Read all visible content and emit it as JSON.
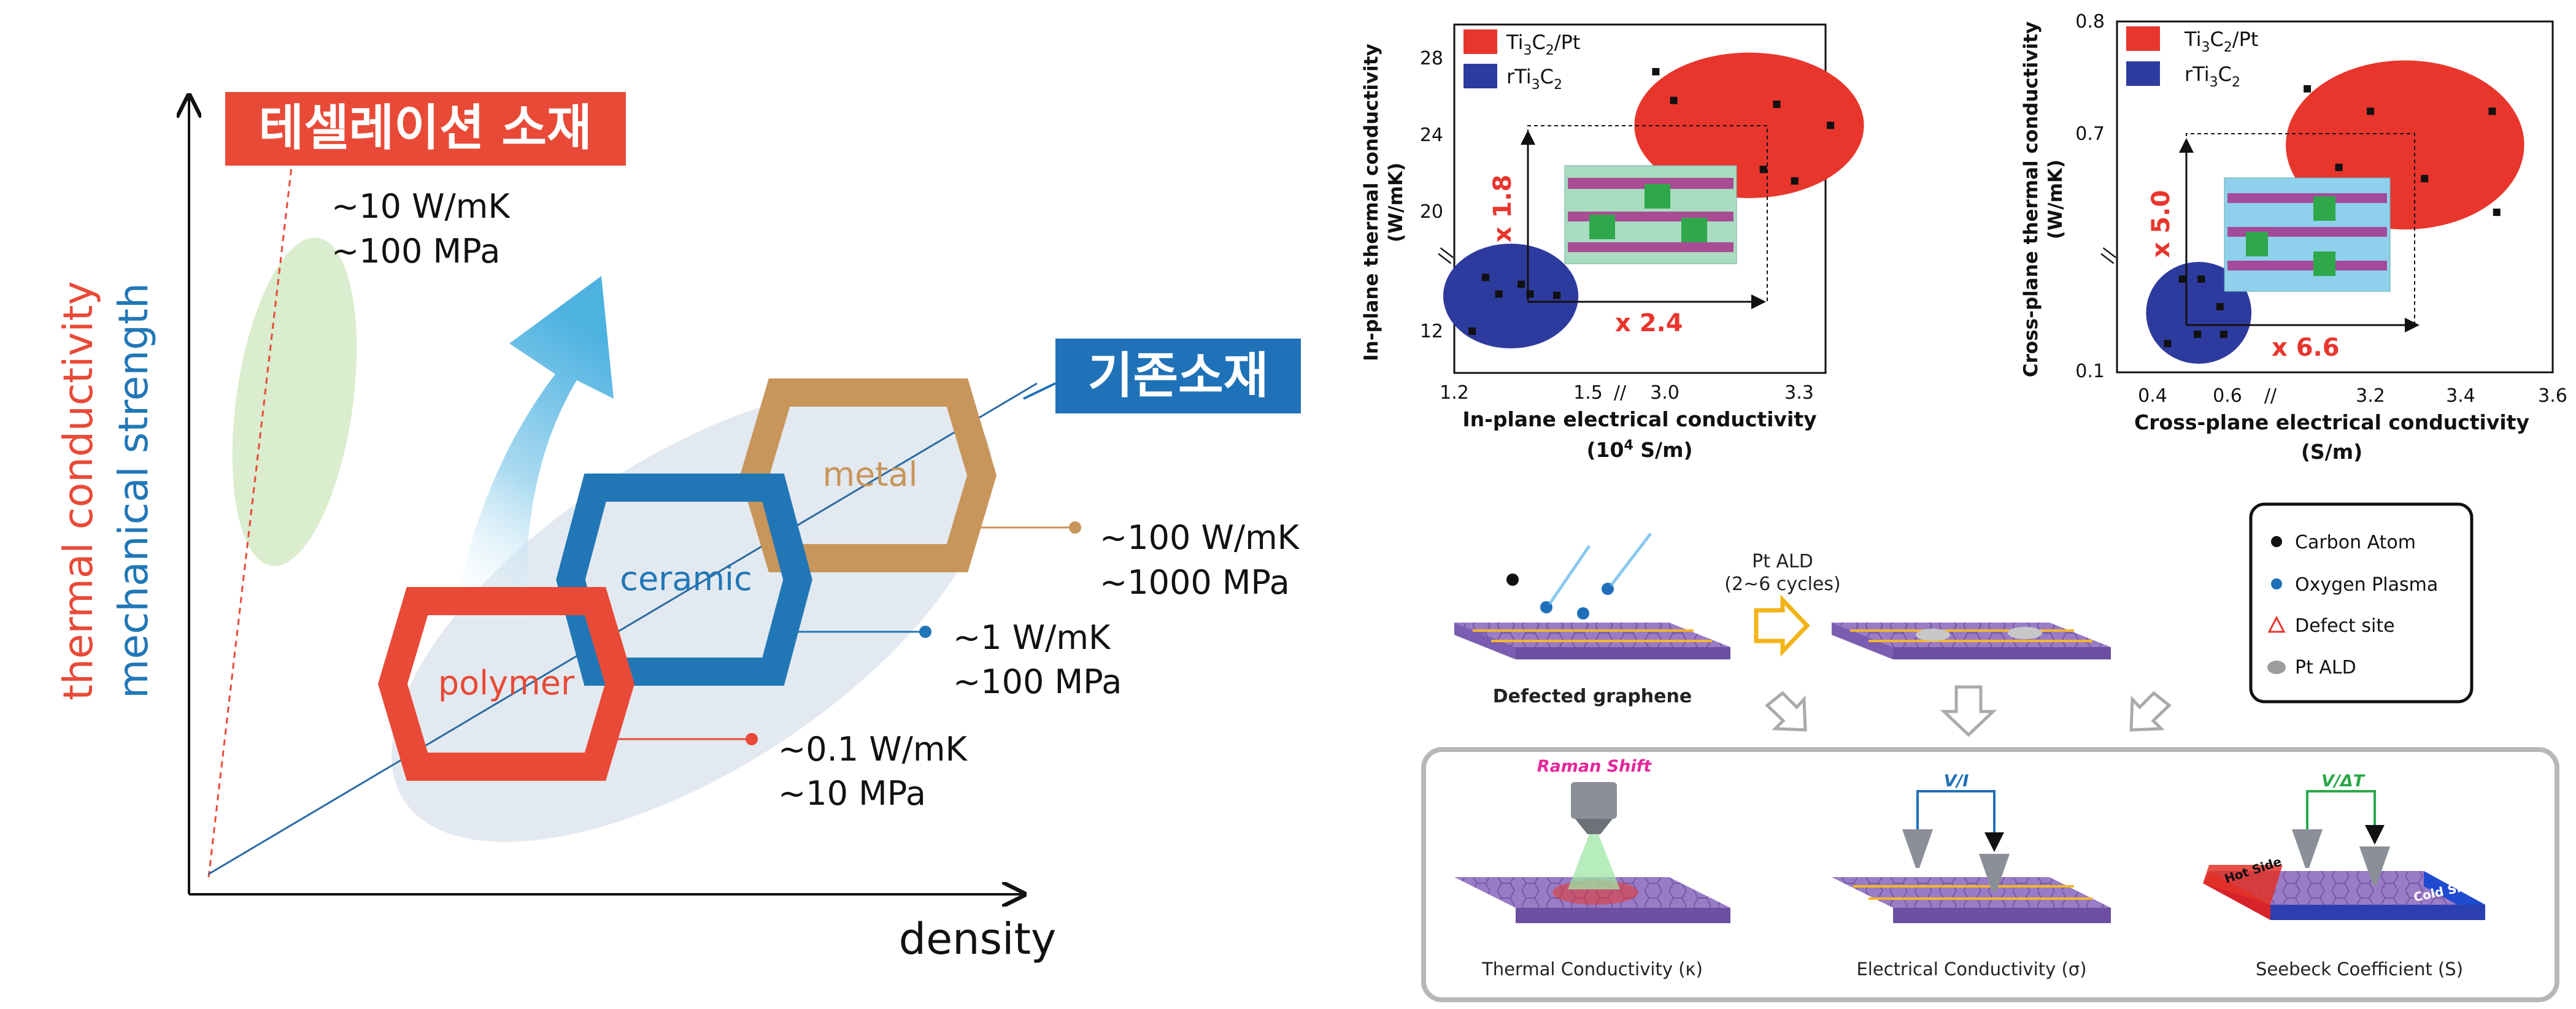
{
  "colors": {
    "red": "#e84a37",
    "blue": "#2177b6",
    "tan": "#c8955a",
    "dark_blue_tag": "#1f72b8",
    "plot_red": "#e8362d",
    "plot_blue": "#2e3b9e",
    "green_ellipse": "#d4e9c6",
    "grey_ellipse": "#e2e8ef"
  },
  "left": {
    "y_label_red": "thermal conductivity",
    "y_label_blue": "mechanical strength",
    "x_label": "density",
    "new_material_tag": "테셀레이션 소재",
    "existing_material_tag": "기존소재",
    "new_k": "~10 W/mK",
    "new_s": "~100 MPa",
    "metal": {
      "name": "metal",
      "k": "~100 W/mK",
      "s": "~1000 MPa"
    },
    "ceramic": {
      "name": "ceramic",
      "k": "~1 W/mK",
      "s": "~100 MPa"
    },
    "polymer": {
      "name": "polymer",
      "k": "~0.1 W/mK",
      "s": "~10 MPa"
    }
  },
  "plot1": {
    "ylabel": "In-plane thermal conductivity\n(W/mK)",
    "xlabel": "In-plane electrical conductivity",
    "xunit_prefix": "(10",
    "xunit_sup": "4",
    "xunit_suffix": " S/m)",
    "yticks": [
      "12",
      "20",
      "24",
      "28"
    ],
    "xticks": [
      "1.2",
      "1.5",
      "3.0",
      "3.3"
    ],
    "mult_y": "x 1.8",
    "mult_x": "x 2.4",
    "legend": [
      {
        "pre": "Ti",
        "s1": "3",
        "mid": "C",
        "s2": "2",
        "post": "/Pt"
      },
      {
        "pre": "rTi",
        "s1": "3",
        "mid": "C",
        "s2": "2",
        "post": ""
      }
    ]
  },
  "plot2": {
    "ylabel": "Cross-plane thermal conductivity\n(W/mK)",
    "xlabel": "Cross-plane electrical conductivity",
    "xunit": "(S/m)",
    "yticks": [
      "0.1",
      "0.7",
      "0.8"
    ],
    "xticks": [
      "0.4",
      "0.6",
      "3.2",
      "3.4",
      "3.6"
    ],
    "mult_y": "x 5.0",
    "mult_x": "x 6.6",
    "legend": [
      {
        "pre": "Ti",
        "s1": "3",
        "mid": "C",
        "s2": "2",
        "post": "/Pt"
      },
      {
        "pre": "rTi",
        "s1": "3",
        "mid": "C",
        "s2": "2",
        "post": ""
      }
    ]
  },
  "chart_data": [
    {
      "type": "scatter",
      "xlabel": "In-plane electrical conductivity (10⁴ S/m)",
      "ylabel": "In-plane thermal conductivity (W/mK)",
      "xaxis_break": true,
      "yaxis_break": true,
      "series": [
        {
          "name": "Ti3C2/Pt",
          "points": [
            [
              2.98,
              27.3
            ],
            [
              3.02,
              25.8
            ],
            [
              3.25,
              25.6
            ],
            [
              3.37,
              24.5
            ],
            [
              3.22,
              22.2
            ],
            [
              3.29,
              21.6
            ]
          ]
        },
        {
          "name": "rTi3C2",
          "points": [
            [
              1.27,
              15.9
            ],
            [
              1.35,
              15.4
            ],
            [
              1.3,
              14.7
            ],
            [
              1.37,
              14.7
            ],
            [
              1.43,
              14.6
            ],
            [
              1.24,
              12.0
            ]
          ]
        }
      ]
    },
    {
      "type": "scatter",
      "xlabel": "Cross-plane electrical conductivity (S/m)",
      "ylabel": "Cross-plane thermal conductivity (W/mK)",
      "xaxis_break": true,
      "yaxis_break": true,
      "series": [
        {
          "name": "Ti3C2/Pt",
          "points": [
            [
              3.06,
              0.74
            ],
            [
              3.13,
              0.67
            ],
            [
              3.2,
              0.72
            ],
            [
              3.32,
              0.66
            ],
            [
              3.47,
              0.72
            ],
            [
              3.48,
              0.63
            ]
          ]
        },
        {
          "name": "rTi3C2",
          "points": [
            [
              0.48,
              0.2
            ],
            [
              0.53,
              0.2
            ],
            [
              0.58,
              0.17
            ],
            [
              0.44,
              0.13
            ],
            [
              0.52,
              0.14
            ],
            [
              0.59,
              0.14
            ]
          ]
        }
      ]
    }
  ],
  "schematic": {
    "step1_label": "Defected graphene",
    "ald_label_1": "Pt ALD",
    "ald_label_2": "(2~6 cycles)",
    "legend": [
      "Carbon Atom",
      "Oxygen Plasma",
      "Defect site",
      "Pt ALD"
    ],
    "measures": [
      {
        "top": "Raman Shift",
        "label": "Thermal Conductivity (κ)"
      },
      {
        "top": "V/I",
        "label": "Electrical Conductivity (σ)"
      },
      {
        "top": "V/ΔT",
        "label": "Seebeck Coefficient (S)"
      }
    ],
    "hot_side": "Hot Side",
    "cold_side": "Cold Side"
  }
}
